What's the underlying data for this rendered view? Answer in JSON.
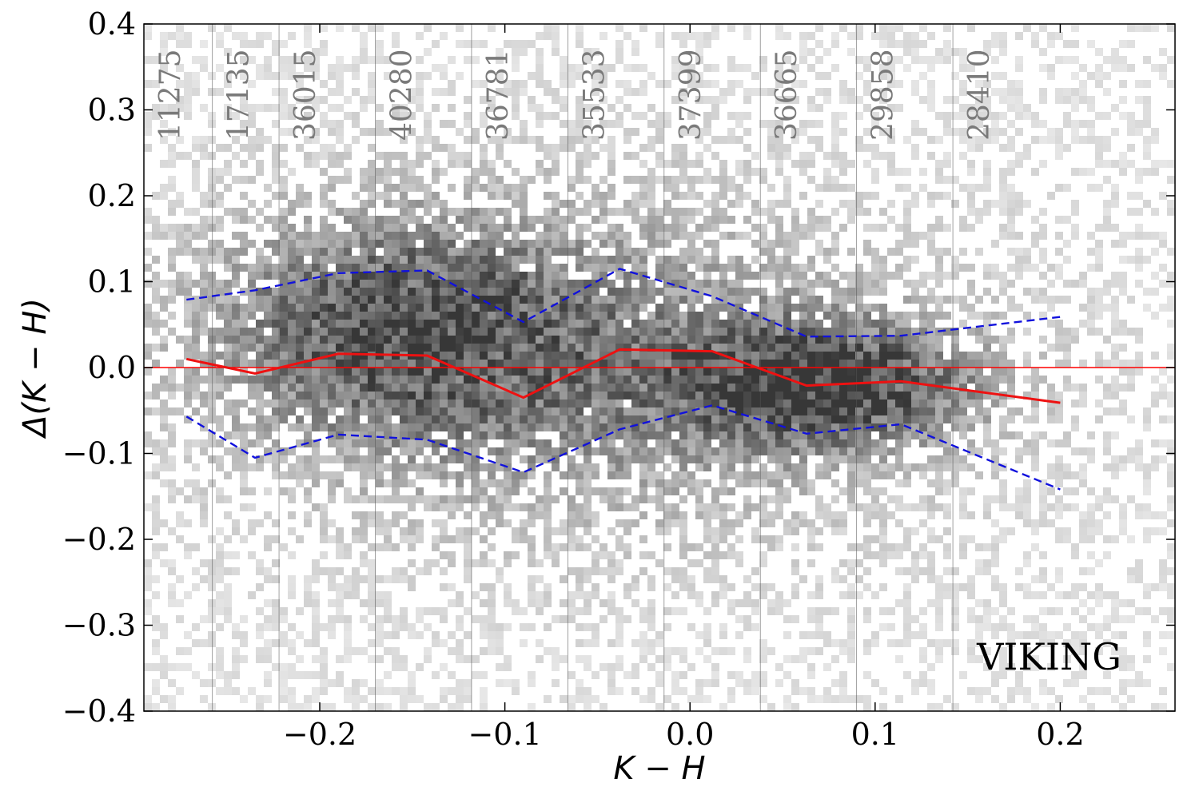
{
  "chart_data": {
    "type": "scatter",
    "subtype": "2d-density-histogram",
    "annotation": "VIKING",
    "xlabel": "K − H",
    "ylabel": "Δ(K − H)",
    "xlim": [
      -0.295,
      0.262
    ],
    "ylim": [
      -0.4,
      0.4
    ],
    "xticks": [
      -0.2,
      -0.1,
      0.0,
      0.1,
      0.2
    ],
    "xtick_labels": [
      "−0.2",
      "−0.1",
      "0.0",
      "0.1",
      "0.2"
    ],
    "yticks": [
      -0.4,
      -0.3,
      -0.2,
      -0.1,
      0.0,
      0.1,
      0.2,
      0.3,
      0.4
    ],
    "ytick_labels": [
      "−0.4",
      "−0.3",
      "−0.2",
      "−0.1",
      "0.0",
      "0.1",
      "0.2",
      "0.3",
      "0.4"
    ],
    "grid": false,
    "colormap": "greys",
    "bin_edges": [
      -0.258,
      -0.222,
      -0.17,
      -0.118,
      -0.066,
      -0.014,
      0.038,
      0.09,
      0.142
    ],
    "bin_counts": [
      "11275",
      "17135",
      "36015",
      "40280",
      "36781",
      "35533",
      "37399",
      "36665",
      "29858",
      "28410"
    ],
    "reference_line": {
      "y": 0.0,
      "color": "#ff0000"
    },
    "series": [
      {
        "role": "median",
        "style": "solid",
        "color": "#ee1111",
        "x": [
          -0.272,
          -0.235,
          -0.19,
          -0.142,
          -0.09,
          -0.038,
          0.012,
          0.063,
          0.114,
          0.2
        ],
        "y": [
          0.01,
          -0.007,
          0.016,
          0.014,
          -0.035,
          0.021,
          0.019,
          -0.021,
          -0.016,
          -0.041
        ]
      },
      {
        "role": "upper-bound",
        "style": "dashed",
        "color": "#1111dd",
        "x": [
          -0.272,
          -0.235,
          -0.19,
          -0.142,
          -0.09,
          -0.038,
          0.012,
          0.063,
          0.114,
          0.2
        ],
        "y": [
          0.079,
          0.09,
          0.11,
          0.113,
          0.053,
          0.115,
          0.083,
          0.036,
          0.037,
          0.059
        ]
      },
      {
        "role": "lower-bound",
        "style": "dashed",
        "color": "#1111dd",
        "x": [
          -0.272,
          -0.235,
          -0.19,
          -0.142,
          -0.09,
          -0.038,
          0.012,
          0.063,
          0.114,
          0.2
        ],
        "y": [
          -0.057,
          -0.105,
          -0.078,
          -0.084,
          -0.122,
          -0.072,
          -0.044,
          -0.077,
          -0.066,
          -0.142
        ]
      }
    ],
    "density_model": {
      "components": [
        {
          "x": -0.16,
          "y": 0.05,
          "sx": 0.07,
          "sy": 0.09,
          "w": 0.6
        },
        {
          "x": 0.075,
          "y": -0.02,
          "sx": 0.055,
          "sy": 0.05,
          "w": 0.8
        },
        {
          "x": -0.05,
          "y": 0.0,
          "sx": 0.13,
          "sy": 0.14,
          "w": 0.45
        }
      ]
    }
  }
}
